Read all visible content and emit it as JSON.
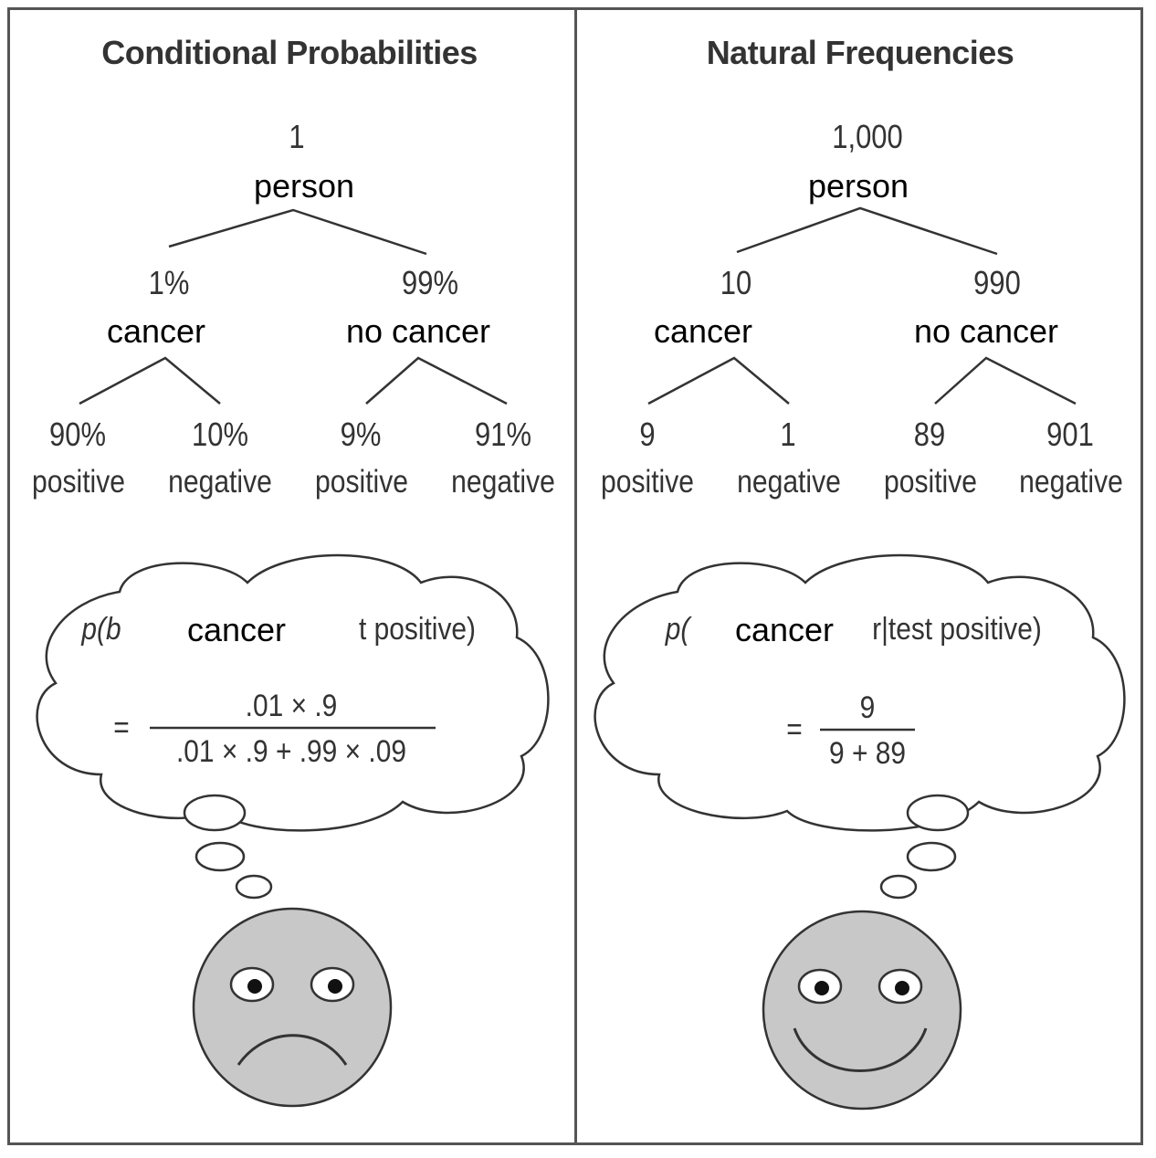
{
  "left": {
    "title": "Conditional Probabilities",
    "root_value": "1",
    "root_label": "person",
    "branches": [
      {
        "value": "1%",
        "label": "cancer"
      },
      {
        "value": "99%",
        "label": "no cancer"
      }
    ],
    "leaves": [
      {
        "value": "90%",
        "label": "positive"
      },
      {
        "value": "10%",
        "label": "negative"
      },
      {
        "value": "9%",
        "label": "positive"
      },
      {
        "value": "91%",
        "label": "negative"
      }
    ],
    "thought": {
      "p_prefix": "p(b",
      "cond_word": "cancer",
      "p_suffix": "t positive)",
      "equals": "=",
      "numerator": ".01 × .9",
      "denominator": ".01 × .9 + .99 × .09"
    },
    "face": "sad"
  },
  "right": {
    "title": "Natural Frequencies",
    "root_value": "1,000",
    "root_label": "person",
    "branches": [
      {
        "value": "10",
        "label": "cancer"
      },
      {
        "value": "990",
        "label": "no cancer"
      }
    ],
    "leaves": [
      {
        "value": "9",
        "label": "positive"
      },
      {
        "value": "1",
        "label": "negative"
      },
      {
        "value": "89",
        "label": "positive"
      },
      {
        "value": "901",
        "label": "negative"
      }
    ],
    "thought": {
      "p_prefix": "p(",
      "cond_word": "cancer",
      "p_suffix": "r|test positive)",
      "equals": "=",
      "numerator": "9",
      "denominator": "9 + 89"
    },
    "face": "happy"
  },
  "colors": {
    "face_fill": "#c8c8c8",
    "line": "#333333",
    "border": "#555555"
  }
}
